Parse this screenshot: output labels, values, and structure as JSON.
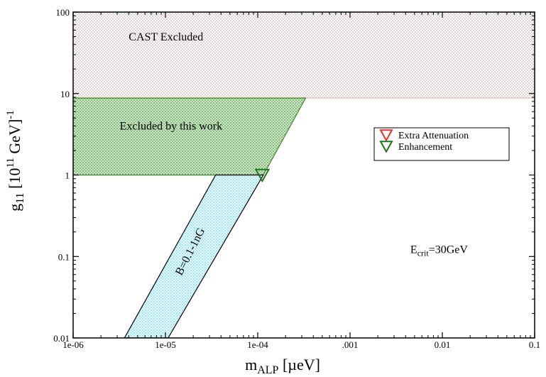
{
  "chart_data": {
    "type": "area",
    "title": "",
    "xlabel": {
      "main": "m",
      "sub": "ALP",
      "unit": " [µeV]"
    },
    "ylabel": {
      "main": "g",
      "sub": "11",
      "open": " [10",
      "sup": "11",
      "mid": " GeV]",
      "sup2": "-1"
    },
    "x_scale": "log",
    "y_scale": "log",
    "xlim": [
      1e-06,
      0.1
    ],
    "ylim": [
      0.01,
      100
    ],
    "x_ticks": [
      {
        "value": 1e-06,
        "label": "1e-06"
      },
      {
        "value": 1e-05,
        "label": "1e-05"
      },
      {
        "value": 0.0001,
        "label": "1e-04"
      },
      {
        "value": 0.001,
        "label": ".001"
      },
      {
        "value": 0.01,
        "label": "0.01"
      },
      {
        "value": 0.1,
        "label": "0.1"
      }
    ],
    "y_ticks": [
      {
        "value": 0.01,
        "label": "0.01"
      },
      {
        "value": 0.1,
        "label": "0.1"
      },
      {
        "value": 1,
        "label": "1"
      },
      {
        "value": 10,
        "label": "10"
      },
      {
        "value": 100,
        "label": "100"
      }
    ],
    "regions": [
      {
        "key": "cast",
        "label": "CAST Excluded",
        "fill": "#e8b8b8",
        "stroke": "#d89a9a",
        "polygon": [
          [
            1e-06,
            8.8
          ],
          [
            0.1,
            8.8
          ],
          [
            0.1,
            100
          ],
          [
            1e-06,
            100
          ]
        ],
        "label_at": [
          4e-06,
          45
        ]
      },
      {
        "key": "this_work",
        "label": "Excluded by this work",
        "fill": "#7fbf7f",
        "stroke": "#3a8a1a",
        "polygon": [
          [
            1e-06,
            1
          ],
          [
            0.000115,
            1
          ],
          [
            0.00033,
            8.8
          ],
          [
            1e-06,
            8.8
          ]
        ],
        "label_at": [
          3.2e-06,
          3.6
        ]
      },
      {
        "key": "band",
        "label": "B=0.1-1nG",
        "fill": "#7fdfef",
        "stroke": "#000000",
        "polygon": [
          [
            3.6e-06,
            0.01
          ],
          [
            1.07e-05,
            0.01
          ],
          [
            0.000115,
            1
          ],
          [
            3.5e-05,
            1
          ]
        ],
        "label_at": [
          2e-05,
          0.11
        ],
        "label_angle": -63
      }
    ],
    "markers": [
      {
        "key": "enh",
        "series": "Enhancement",
        "x": 0.000112,
        "y": 1,
        "shape": "triangle-down",
        "color": "#1a7a1a"
      }
    ],
    "legend": {
      "placement": "right",
      "entries": [
        {
          "label": "Extra Attenuation",
          "shape": "triangle-down",
          "color": "#e83030"
        },
        {
          "label": "Enhancement",
          "shape": "triangle-down",
          "color": "#1a7a1a"
        }
      ]
    },
    "annotation": {
      "main": "E",
      "sub": "crit",
      "rest": "=30GeV",
      "x": 0.0045,
      "y": 0.11
    },
    "grid": false
  }
}
